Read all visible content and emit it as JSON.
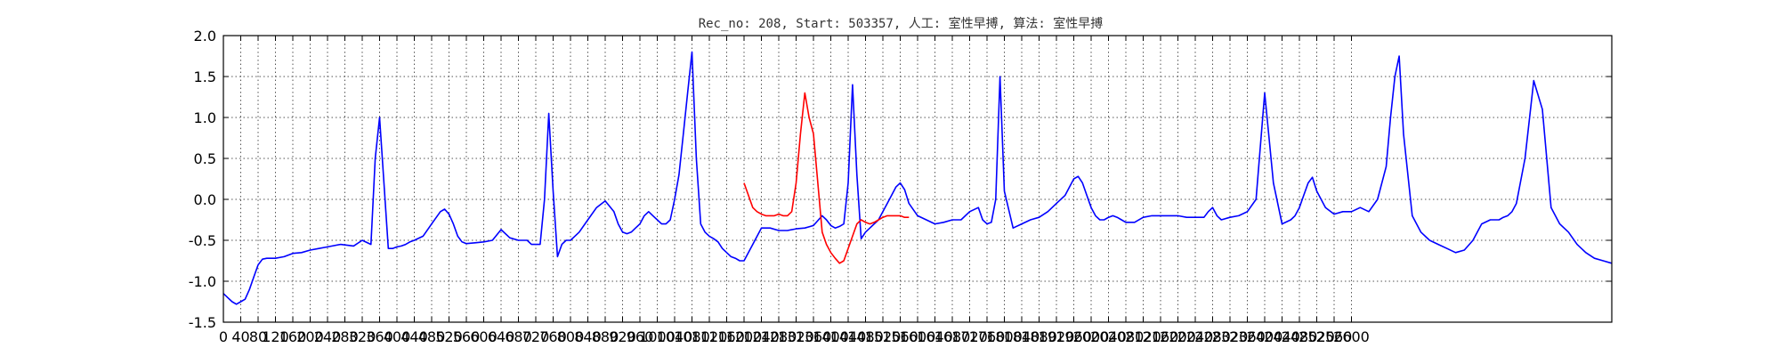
{
  "chart_data": {
    "type": "line",
    "title": "Rec_no: 208, Start: 503357, 人工: 室性早搏, 算法: 室性早搏",
    "xlabel": "",
    "ylabel": "",
    "xlim": [
      0,
      3200
    ],
    "ylim": [
      -1.5,
      2.0
    ],
    "grid": true,
    "y_ticks": [
      "-1.5",
      "-1.0",
      "-0.5",
      "0.0",
      "0.5",
      "1.0",
      "1.5",
      "2.0"
    ],
    "x_ticks": [
      "0",
      "40",
      "80",
      "120",
      "160",
      "200",
      "240",
      "280",
      "320",
      "360",
      "400",
      "440",
      "480",
      "520",
      "560",
      "600",
      "640",
      "680",
      "720",
      "760",
      "800",
      "840",
      "880",
      "920",
      "960",
      "1000",
      "1040",
      "1080",
      "1120",
      "1160",
      "1200",
      "1240",
      "1280",
      "1320",
      "1360",
      "1400",
      "1440",
      "1480",
      "1520",
      "1560",
      "1600",
      "1640",
      "1680",
      "1720",
      "1760",
      "1800",
      "1840",
      "1880",
      "1920",
      "1960",
      "2000",
      "2040",
      "2080",
      "2120",
      "2160",
      "2200",
      "2240",
      "2280",
      "2320",
      "2360",
      "2400",
      "2440",
      "2480",
      "2520",
      "2560",
      "2600"
    ],
    "series": [
      {
        "color": "#0000ff",
        "x": [
          0,
          10,
          20,
          30,
          40,
          50,
          60,
          70,
          80,
          90,
          100,
          120,
          140,
          160,
          180,
          200,
          220,
          240,
          270,
          300,
          320,
          340,
          350,
          360,
          370,
          380,
          390,
          400,
          410,
          420,
          430,
          440,
          460,
          480,
          500,
          510,
          520,
          530,
          540,
          550,
          560,
          580,
          600,
          620,
          640,
          660,
          680,
          700,
          710,
          720,
          730,
          740,
          750,
          760,
          770,
          780,
          790,
          800,
          810,
          820,
          840,
          860,
          880,
          900,
          910,
          920,
          930,
          940,
          950,
          960,
          970,
          980,
          990,
          1000,
          1010,
          1020,
          1030,
          1040,
          1050,
          1060,
          1070,
          1080,
          1090,
          1100,
          1110,
          1120,
          1130,
          1140,
          1150,
          1160,
          1170,
          1180,
          1190,
          1200,
          1220,
          1240,
          1260,
          1280,
          1300,
          1320,
          1340,
          1360,
          1380,
          1390,
          1400,
          1410,
          1420,
          1430,
          1440,
          1450,
          1460,
          1470,
          1480,
          1490,
          1500,
          1510,
          1520,
          1530,
          1540,
          1550,
          1560,
          1570,
          1580,
          1600,
          1620,
          1640,
          1660,
          1680,
          1700,
          1720,
          1740,
          1750,
          1760,
          1770,
          1780,
          1790,
          1800,
          1820,
          1840,
          1860,
          1880,
          1900,
          1920,
          1940,
          1950,
          1960,
          1970,
          1980,
          1990,
          2000,
          2010,
          2020,
          2030,
          2040,
          2050,
          2060,
          2070,
          2080,
          2090,
          2100,
          2120,
          2140,
          2160,
          2180,
          2200,
          2220,
          2240,
          2250,
          2260,
          2270,
          2280,
          2290,
          2300,
          2320,
          2340,
          2360,
          2380,
          2400,
          2420,
          2440,
          2460,
          2470,
          2480,
          2490,
          2500,
          2510,
          2520,
          2540,
          2560,
          2580,
          2600,
          2620,
          2640,
          2660,
          2680,
          2690,
          2700,
          2710,
          2720,
          2740,
          2760,
          2780,
          2800,
          2820,
          2840,
          2860,
          2880,
          2900,
          2920,
          2930,
          2940,
          2950,
          2960,
          2970,
          2980,
          3000,
          3020,
          3040,
          3060,
          3080,
          3100,
          3120,
          3140,
          3160,
          3180,
          3200
        ],
        "y": [
          -1.15,
          -1.2,
          -1.25,
          -1.28,
          -1.25,
          -1.22,
          -1.1,
          -0.95,
          -0.8,
          -0.73,
          -0.72,
          -0.72,
          -0.7,
          -0.66,
          -0.65,
          -0.62,
          -0.6,
          -0.58,
          -0.55,
          -0.57,
          -0.5,
          -0.55,
          0.5,
          1.0,
          0.2,
          -0.6,
          -0.6,
          -0.58,
          -0.57,
          -0.55,
          -0.52,
          -0.5,
          -0.45,
          -0.3,
          -0.15,
          -0.12,
          -0.18,
          -0.3,
          -0.45,
          -0.52,
          -0.54,
          -0.53,
          -0.52,
          -0.5,
          -0.37,
          -0.47,
          -0.5,
          -0.5,
          -0.55,
          -0.55,
          -0.55,
          0.0,
          1.05,
          0.1,
          -0.7,
          -0.55,
          -0.5,
          -0.5,
          -0.45,
          -0.4,
          -0.25,
          -0.1,
          -0.02,
          -0.15,
          -0.3,
          -0.4,
          -0.42,
          -0.4,
          -0.35,
          -0.3,
          -0.2,
          -0.15,
          -0.2,
          -0.25,
          -0.3,
          -0.3,
          -0.25,
          0.0,
          0.3,
          0.8,
          1.3,
          1.8,
          0.5,
          -0.3,
          -0.4,
          -0.45,
          -0.48,
          -0.52,
          -0.6,
          -0.65,
          -0.7,
          -0.72,
          -0.75,
          -0.75,
          -0.55,
          -0.35,
          -0.35,
          -0.38,
          -0.38,
          -0.36,
          -0.35,
          -0.32,
          -0.2,
          -0.25,
          -0.32,
          -0.35,
          -0.33,
          -0.3,
          0.2,
          1.4,
          0.3,
          -0.48,
          -0.4,
          -0.35,
          -0.3,
          -0.25,
          -0.15,
          -0.05,
          0.05,
          0.15,
          0.2,
          0.12,
          -0.05,
          -0.2,
          -0.25,
          -0.3,
          -0.28,
          -0.25,
          -0.25,
          -0.15,
          -0.1,
          -0.25,
          -0.3,
          -0.28,
          0.0,
          1.5,
          0.1,
          -0.35,
          -0.3,
          -0.25,
          -0.22,
          -0.15,
          -0.05,
          0.05,
          0.15,
          0.25,
          0.28,
          0.2,
          0.05,
          -0.1,
          -0.2,
          -0.25,
          -0.25,
          -0.22,
          -0.2,
          -0.22,
          -0.25,
          -0.28,
          -0.28,
          -0.28,
          -0.22,
          -0.2,
          -0.2,
          -0.2,
          -0.2,
          -0.22,
          -0.22,
          -0.22,
          -0.22,
          -0.15,
          -0.1,
          -0.2,
          -0.25,
          -0.22,
          -0.2,
          -0.15,
          0.0,
          1.3,
          0.2,
          -0.3,
          -0.25,
          -0.2,
          -0.1,
          0.05,
          0.2,
          0.27,
          0.1,
          -0.1,
          -0.18,
          -0.15,
          -0.15,
          -0.1,
          -0.15,
          0.0,
          0.4,
          1.0,
          1.5,
          1.75,
          0.8,
          -0.2,
          -0.4,
          -0.5,
          -0.55,
          -0.6,
          -0.65,
          -0.62,
          -0.5,
          -0.3,
          -0.25,
          -0.25,
          -0.25,
          -0.22,
          -0.2,
          -0.15,
          -0.05,
          0.5,
          1.45,
          1.1,
          -0.1,
          -0.3,
          -0.4,
          -0.55,
          -0.65,
          -0.72,
          -0.75,
          -0.78
        ]
      }
    ],
    "highlight": {
      "color": "#ff0000",
      "x": [
        1200,
        1210,
        1220,
        1230,
        1240,
        1250,
        1260,
        1270,
        1280,
        1290,
        1300,
        1310,
        1320,
        1330,
        1340,
        1350,
        1360,
        1370,
        1380,
        1390,
        1400,
        1410,
        1420,
        1430,
        1440,
        1450,
        1460,
        1470,
        1480,
        1490,
        1500,
        1510,
        1520,
        1530,
        1540,
        1550,
        1560,
        1570,
        1580
      ],
      "y": [
        0.2,
        0.05,
        -0.1,
        -0.15,
        -0.18,
        -0.2,
        -0.2,
        -0.2,
        -0.18,
        -0.2,
        -0.2,
        -0.15,
        0.2,
        0.8,
        1.3,
        1.0,
        0.8,
        0.2,
        -0.4,
        -0.55,
        -0.65,
        -0.72,
        -0.78,
        -0.75,
        -0.6,
        -0.45,
        -0.3,
        -0.25,
        -0.28,
        -0.3,
        -0.28,
        -0.25,
        -0.22,
        -0.2,
        -0.2,
        -0.2,
        -0.2,
        -0.22,
        -0.22
      ]
    }
  }
}
